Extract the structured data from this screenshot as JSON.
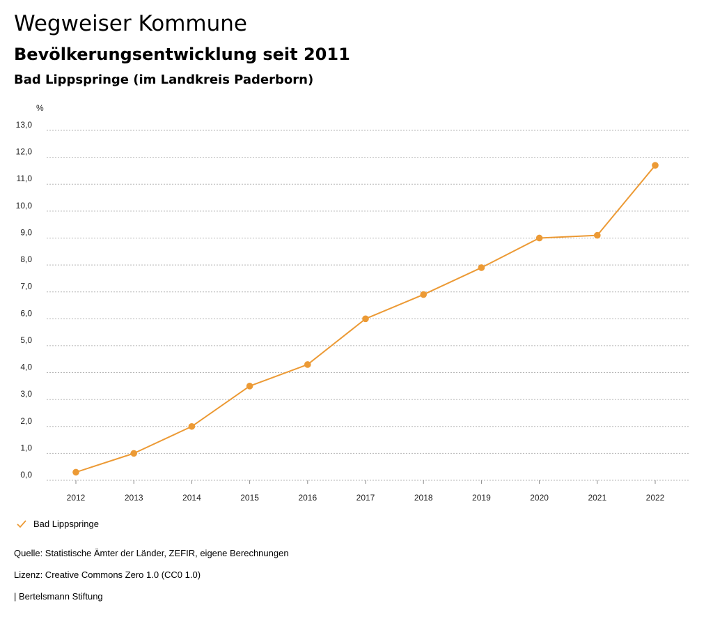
{
  "header": {
    "title": "Wegweiser Kommune",
    "subtitle": "Bevölkerungsentwicklung seit 2011",
    "region": "Bad Lippspringe (im Landkreis Paderborn)"
  },
  "chart_data": {
    "type": "line",
    "title": "Bevölkerungsentwicklung seit 2011",
    "xlabel": "",
    "ylabel": "%",
    "categories": [
      "2012",
      "2013",
      "2014",
      "2015",
      "2016",
      "2017",
      "2018",
      "2019",
      "2020",
      "2021",
      "2022"
    ],
    "series": [
      {
        "name": "Bad Lippspringe",
        "values": [
          0.3,
          1.0,
          2.0,
          3.5,
          4.3,
          6.0,
          6.9,
          7.9,
          9.0,
          9.1,
          11.7
        ]
      }
    ],
    "ylim": [
      0,
      13
    ],
    "yticks": [
      "0,0",
      "1,0",
      "2,0",
      "3,0",
      "4,0",
      "5,0",
      "6,0",
      "7,0",
      "8,0",
      "9,0",
      "10,0",
      "11,0",
      "12,0",
      "13,0"
    ],
    "grid": true,
    "legend": "bottom-left",
    "color": "#EC9A35"
  },
  "legend": {
    "label": "Bad Lippspringe"
  },
  "footer": {
    "source": "Quelle: Statistische Ämter der Länder, ZEFIR, eigene Berechnungen",
    "license": "Lizenz: Creative Commons Zero 1.0 (CC0 1.0)",
    "publisher": "| Bertelsmann Stiftung"
  }
}
